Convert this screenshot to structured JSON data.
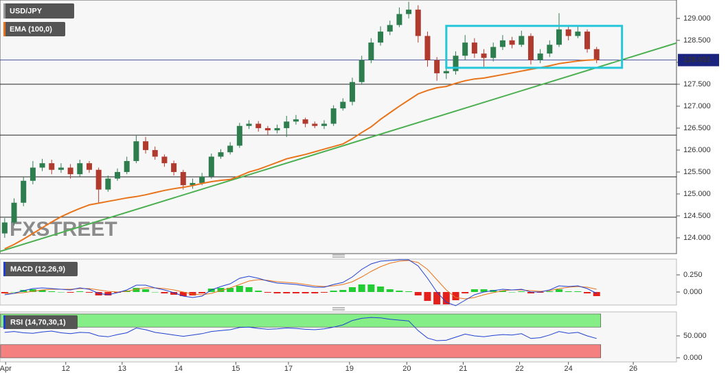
{
  "chart_data": [
    {
      "type": "candlestick",
      "name": "USD/JPY",
      "x": [
        0,
        1,
        2,
        3,
        4,
        5,
        6,
        7,
        8,
        9,
        10,
        11,
        12,
        13,
        14,
        15,
        16,
        17,
        18,
        19,
        20,
        21,
        22,
        23,
        24,
        25,
        26,
        27,
        28,
        29,
        30,
        31,
        32,
        33,
        34,
        35,
        36,
        37,
        38,
        39,
        40,
        41,
        42,
        43,
        44,
        45,
        46,
        47,
        48,
        49,
        50,
        51,
        52,
        53,
        54,
        55,
        56,
        57,
        58,
        59,
        60,
        61,
        62,
        63
      ],
      "open": [
        124.1,
        124.35,
        124.8,
        125.3,
        125.6,
        125.7,
        125.55,
        125.6,
        125.45,
        125.7,
        125.55,
        125.1,
        125.35,
        125.5,
        125.75,
        126.2,
        126.0,
        125.85,
        125.7,
        125.5,
        125.2,
        125.25,
        125.4,
        125.85,
        125.95,
        126.1,
        126.55,
        126.6,
        126.5,
        126.45,
        126.5,
        126.65,
        126.7,
        126.6,
        126.55,
        126.6,
        126.95,
        127.1,
        127.55,
        128.05,
        128.45,
        128.7,
        128.85,
        129.1,
        129.2,
        128.6,
        128.05,
        127.75,
        127.8,
        128.15,
        128.45,
        128.2,
        128.1,
        128.35,
        128.5,
        128.4,
        128.6,
        128.05,
        128.2,
        128.4,
        128.75,
        128.6,
        128.7,
        128.3
      ],
      "high": [
        124.45,
        124.9,
        125.4,
        125.75,
        125.8,
        125.78,
        125.7,
        125.68,
        125.78,
        125.75,
        125.6,
        125.42,
        125.58,
        125.85,
        126.35,
        126.3,
        126.08,
        125.9,
        125.76,
        125.55,
        125.35,
        125.48,
        125.92,
        126.02,
        126.18,
        126.62,
        126.68,
        126.66,
        126.55,
        126.58,
        126.78,
        126.8,
        126.74,
        126.65,
        126.68,
        127.02,
        127.18,
        127.65,
        128.15,
        128.55,
        128.82,
        128.95,
        129.25,
        129.38,
        129.3,
        128.7,
        128.12,
        127.92,
        128.25,
        128.62,
        128.55,
        128.3,
        128.45,
        128.62,
        128.58,
        128.72,
        128.66,
        128.3,
        128.5,
        129.12,
        128.85,
        128.82,
        128.75,
        128.35
      ],
      "low": [
        124.0,
        124.28,
        124.72,
        125.22,
        125.52,
        125.45,
        125.48,
        125.35,
        125.4,
        125.48,
        124.8,
        125.05,
        125.3,
        125.45,
        125.7,
        125.92,
        125.78,
        125.62,
        125.42,
        125.1,
        125.12,
        125.2,
        125.35,
        125.8,
        125.9,
        126.05,
        126.48,
        126.42,
        126.35,
        126.38,
        126.3,
        126.58,
        126.52,
        126.5,
        126.48,
        126.55,
        126.9,
        127.02,
        127.5,
        127.98,
        128.38,
        128.62,
        128.8,
        129.0,
        128.45,
        127.9,
        127.58,
        127.62,
        127.72,
        128.05,
        128.1,
        127.9,
        128.02,
        128.28,
        128.32,
        128.35,
        127.95,
        127.98,
        128.12,
        128.35,
        128.5,
        128.55,
        128.22,
        127.98
      ],
      "close": [
        124.35,
        124.8,
        125.3,
        125.6,
        125.7,
        125.55,
        125.6,
        125.45,
        125.7,
        125.55,
        125.1,
        125.35,
        125.5,
        125.75,
        126.2,
        126.0,
        125.85,
        125.7,
        125.5,
        125.2,
        125.25,
        125.4,
        125.85,
        125.95,
        126.1,
        126.55,
        126.6,
        126.5,
        126.45,
        126.5,
        126.65,
        126.7,
        126.6,
        126.55,
        126.6,
        126.95,
        127.1,
        127.55,
        128.05,
        128.45,
        128.7,
        128.85,
        129.1,
        129.2,
        128.6,
        128.05,
        127.75,
        127.8,
        128.15,
        128.45,
        128.2,
        128.1,
        128.35,
        128.5,
        128.4,
        128.6,
        128.05,
        128.2,
        128.4,
        128.75,
        128.6,
        128.7,
        128.3,
        128.05
      ],
      "up_color": "#2e7d4f",
      "down_color": "#b03a2e",
      "ema": {
        "name": "EMA (100,0)",
        "color": "#e8731a",
        "values": [
          123.75,
          123.85,
          123.97,
          124.1,
          124.23,
          124.36,
          124.48,
          124.58,
          124.67,
          124.75,
          124.79,
          124.83,
          124.87,
          124.91,
          124.94,
          124.98,
          125.03,
          125.08,
          125.12,
          125.15,
          125.19,
          125.24,
          125.28,
          125.31,
          125.33,
          125.41,
          125.5,
          125.56,
          125.64,
          125.72,
          125.8,
          125.85,
          125.9,
          125.96,
          126.02,
          126.08,
          126.14,
          126.26,
          126.4,
          126.53,
          126.7,
          126.85,
          127.0,
          127.14,
          127.28,
          127.36,
          127.42,
          127.45,
          127.52,
          127.58,
          127.62,
          127.64,
          127.68,
          127.72,
          127.76,
          127.8,
          127.84,
          127.88,
          127.92,
          127.97,
          128.0,
          128.03,
          128.05,
          128.06
        ]
      },
      "trendline": {
        "color": "#4caf50",
        "x": [
          -0.5,
          71.5
        ],
        "y": [
          123.69,
          128.44
        ]
      },
      "box": {
        "color": "#26c6da",
        "x": [
          47,
          65.7
        ],
        "y": [
          127.875,
          128.83
        ]
      },
      "levels": [
        127.5,
        126.34,
        125.39,
        124.47
      ],
      "last_price": 128.051,
      "watermark": "FXSTREET",
      "xlim": [
        -0.5,
        71.5
      ],
      "ylim": [
        123.64,
        129.42
      ],
      "yticks": [
        {
          "value": 124,
          "label": "124.000"
        },
        {
          "value": 124.5,
          "label": "124.500"
        },
        {
          "value": 125,
          "label": "125.000"
        },
        {
          "value": 125.5,
          "label": "125.500"
        },
        {
          "value": 126,
          "label": "126.000"
        },
        {
          "value": 126.5,
          "label": "126.500"
        },
        {
          "value": 127,
          "label": "127.000"
        },
        {
          "value": 127.5,
          "label": "127.500"
        },
        {
          "value": 128,
          "label": "128.000"
        },
        {
          "value": 128.5,
          "label": "128.500"
        },
        {
          "value": 129,
          "label": "129.000"
        }
      ]
    },
    {
      "type": "macd",
      "title": "MACD (12,26,9)",
      "macd": {
        "color": "#1f3fd1",
        "values": [
          -0.04,
          -0.02,
          0.02,
          0.05,
          0.06,
          0.05,
          0.04,
          0.03,
          0.06,
          0.04,
          -0.02,
          -0.04,
          -0.01,
          0.03,
          0.1,
          0.1,
          0.06,
          0.03,
          -0.01,
          -0.06,
          -0.08,
          -0.06,
          0.03,
          0.08,
          0.12,
          0.2,
          0.23,
          0.2,
          0.16,
          0.13,
          0.12,
          0.11,
          0.09,
          0.07,
          0.07,
          0.11,
          0.14,
          0.22,
          0.33,
          0.41,
          0.45,
          0.46,
          0.47,
          0.47,
          0.38,
          0.2,
          0.0,
          -0.15,
          -0.2,
          -0.12,
          -0.04,
          0.0,
          0.02,
          0.04,
          0.03,
          0.04,
          0.0,
          0.0,
          0.03,
          0.09,
          0.08,
          0.09,
          0.05,
          -0.02
        ]
      },
      "signal": {
        "color": "#e8731a",
        "values": [
          -0.02,
          -0.02,
          -0.01,
          0.01,
          0.03,
          0.04,
          0.04,
          0.04,
          0.05,
          0.05,
          0.03,
          0.01,
          0.0,
          0.01,
          0.04,
          0.06,
          0.06,
          0.05,
          0.03,
          0.0,
          -0.03,
          -0.04,
          -0.02,
          0.02,
          0.06,
          0.11,
          0.16,
          0.18,
          0.17,
          0.15,
          0.14,
          0.13,
          0.11,
          0.09,
          0.08,
          0.09,
          0.11,
          0.15,
          0.22,
          0.3,
          0.37,
          0.42,
          0.45,
          0.46,
          0.43,
          0.33,
          0.18,
          0.03,
          -0.08,
          -0.1,
          -0.08,
          -0.04,
          -0.01,
          0.02,
          0.03,
          0.03,
          0.02,
          0.01,
          0.02,
          0.05,
          0.07,
          0.08,
          0.07,
          0.04
        ]
      },
      "histogram": {
        "up_color": "#22cc33",
        "down_color": "#e3201b",
        "values": [
          -0.02,
          0,
          0.03,
          0.04,
          0.03,
          0.01,
          0,
          -0.01,
          0.01,
          -0.01,
          -0.05,
          -0.05,
          -0.01,
          0.02,
          0.06,
          0.04,
          0,
          -0.02,
          -0.04,
          -0.06,
          -0.05,
          -0.02,
          0.05,
          0.06,
          0.06,
          0.09,
          0.07,
          0.02,
          -0.01,
          -0.02,
          -0.02,
          -0.02,
          -0.02,
          -0.02,
          -0.01,
          0.02,
          0.03,
          0.07,
          0.11,
          0.11,
          0.08,
          0.04,
          0.02,
          0.01,
          -0.05,
          -0.13,
          -0.18,
          -0.18,
          -0.12,
          -0.02,
          0.04,
          0.04,
          0.03,
          0.02,
          0,
          0.01,
          -0.02,
          -0.01,
          0.01,
          0.04,
          0.01,
          0.01,
          -0.02,
          -0.06
        ]
      },
      "ylim": [
        -0.19,
        0.48
      ],
      "yticks": [
        {
          "value": 0,
          "label": "0.000"
        },
        {
          "value": 0.25,
          "label": "0.250"
        }
      ]
    },
    {
      "type": "rsi",
      "title": "RSI (14,70,30,1)",
      "color": "#1f3fd1",
      "values": [
        58,
        60,
        57,
        56,
        59,
        61,
        57,
        55,
        58,
        57,
        50,
        48,
        53,
        57,
        68,
        64,
        58,
        55,
        52,
        49,
        52,
        55,
        60,
        62,
        64,
        69,
        70,
        67,
        65,
        66,
        68,
        67,
        65,
        64,
        66,
        70,
        75,
        85,
        90,
        92,
        91,
        88,
        86,
        84,
        62,
        45,
        39,
        40,
        47,
        54,
        50,
        48,
        51,
        53,
        52,
        55,
        44,
        46,
        52,
        60,
        56,
        58,
        50,
        44
      ],
      "bands": [
        {
          "range": [
            70,
            100
          ],
          "color": "#86ee86"
        },
        {
          "range": [
            0,
            30
          ],
          "color": "#f58080"
        }
      ],
      "ylim": [
        -9.4,
        104.7
      ],
      "yticks": [
        {
          "value": 0,
          "label": "0.000"
        },
        {
          "value": 50,
          "label": "50.000"
        }
      ],
      "xticks": [
        {
          "value": 0.1,
          "label": "Apr"
        },
        {
          "value": 6.5,
          "label": "12"
        },
        {
          "value": 12.5,
          "label": "13"
        },
        {
          "value": 18.5,
          "label": "14"
        },
        {
          "value": 24.6,
          "label": "15"
        },
        {
          "value": 30.2,
          "label": "17"
        },
        {
          "value": 36.7,
          "label": "19"
        },
        {
          "value": 42.8,
          "label": "20"
        },
        {
          "value": 48.8,
          "label": "21"
        },
        {
          "value": 54.8,
          "label": "22"
        },
        {
          "value": 60,
          "label": "24"
        },
        {
          "value": 66.9,
          "label": "26"
        }
      ]
    }
  ]
}
